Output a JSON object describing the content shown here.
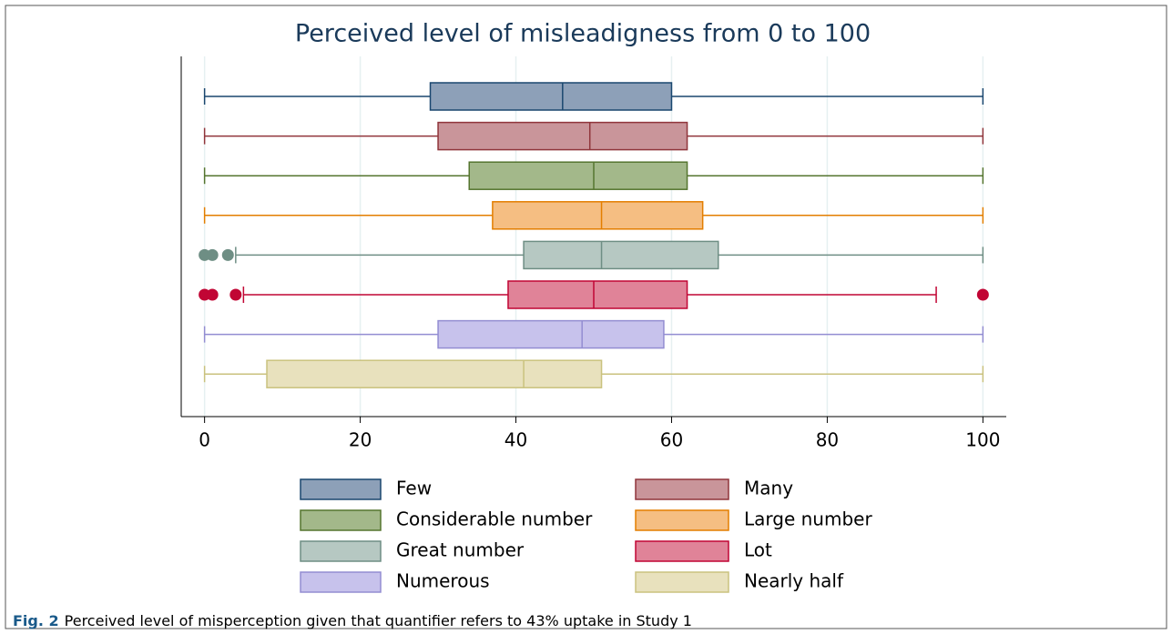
{
  "chart_data": {
    "type": "boxplot",
    "title": "Perceived level of misleadigness from 0 to 100",
    "caption_label": "Fig. 2",
    "caption": "Perceived level of misperception given that quantifier refers to 43% uptake in Study 1",
    "xlim": [
      -3,
      103
    ],
    "xticks": [
      0,
      20,
      40,
      60,
      80,
      100
    ],
    "grid": true,
    "series": [
      {
        "name": "Few",
        "color": "#1a476f",
        "fill": "#8da0b8",
        "whisker_low": 0,
        "q1": 29,
        "median": 46,
        "q3": 60,
        "whisker_high": 100,
        "outliers": []
      },
      {
        "name": "Many",
        "color": "#90353b",
        "fill": "#c9959a",
        "whisker_low": 0,
        "q1": 30,
        "median": 49.5,
        "q3": 62,
        "whisker_high": 100,
        "outliers": []
      },
      {
        "name": "Considerable number",
        "color": "#55752f",
        "fill": "#a3b88a",
        "whisker_low": 0,
        "q1": 34,
        "median": 50,
        "q3": 62,
        "whisker_high": 100,
        "outliers": []
      },
      {
        "name": "Large number",
        "color": "#e37e00",
        "fill": "#f5be82",
        "whisker_low": 0,
        "q1": 37,
        "median": 51,
        "q3": 64,
        "whisker_high": 100,
        "outliers": []
      },
      {
        "name": "Great number",
        "color": "#6e8e84",
        "fill": "#b6c8c2",
        "whisker_low": 4,
        "q1": 41,
        "median": 51,
        "q3": 66,
        "whisker_high": 100,
        "outliers": [
          0,
          1,
          3
        ]
      },
      {
        "name": "Lot",
        "color": "#c10534",
        "fill": "#e08398",
        "whisker_low": 5,
        "q1": 39,
        "median": 50,
        "q3": 62,
        "whisker_high": 94,
        "outliers": [
          0,
          1,
          4,
          100
        ]
      },
      {
        "name": "Numerous",
        "color": "#938dd2",
        "fill": "#c7c2ec",
        "whisker_low": 0,
        "q1": 30,
        "median": 48.5,
        "q3": 59,
        "whisker_high": 100,
        "outliers": []
      },
      {
        "name": "Nearly half",
        "color": "#cac27e",
        "fill": "#e8e1bd",
        "whisker_low": 0,
        "q1": 8,
        "median": 41,
        "q3": 51,
        "whisker_high": 100,
        "outliers": []
      }
    ]
  }
}
